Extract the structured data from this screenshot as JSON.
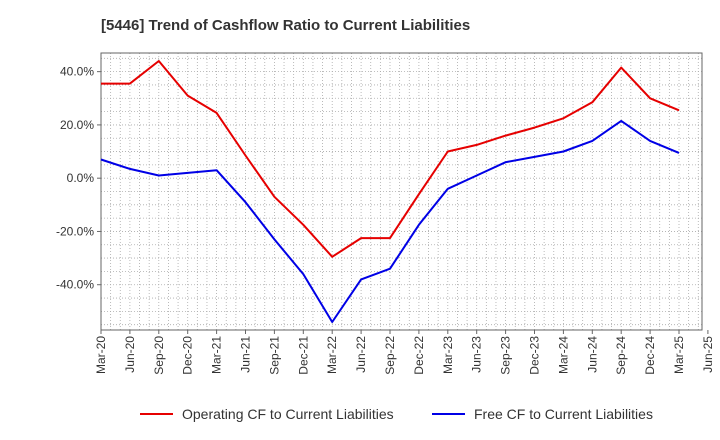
{
  "chart_data": {
    "type": "line",
    "title": "[5446]  Trend of Cashflow Ratio to Current Liabilities",
    "xlabel": "",
    "ylabel": "",
    "categories": [
      "Mar-20",
      "Jun-20",
      "Sep-20",
      "Dec-20",
      "Mar-21",
      "Jun-21",
      "Sep-21",
      "Dec-21",
      "Mar-22",
      "Jun-22",
      "Sep-22",
      "Dec-22",
      "Mar-23",
      "Jun-23",
      "Sep-23",
      "Dec-23",
      "Mar-24",
      "Jun-24",
      "Sep-24",
      "Dec-24",
      "Mar-25",
      "Jun-25"
    ],
    "y_ticks": [
      "40.0%",
      "20.0%",
      "0.0%",
      "-20.0%",
      "-40.0%"
    ],
    "y_tick_values": [
      40,
      20,
      0,
      -20,
      -40
    ],
    "ylim": [
      -57,
      47
    ],
    "grid": true,
    "legend_position": "bottom",
    "series": [
      {
        "name": "Operating CF to Current Liabilities",
        "color": "#e60000",
        "values": [
          35.5,
          35.5,
          44.0,
          31.0,
          24.5,
          8.5,
          -7.0,
          -17.5,
          -29.5,
          -22.5,
          -22.5,
          -6.0,
          10.0,
          12.5,
          16.0,
          19.0,
          22.5,
          28.5,
          41.5,
          30.0,
          25.5,
          null
        ]
      },
      {
        "name": "Free CF to Current Liabilities",
        "color": "#0000e6",
        "values": [
          7.0,
          3.5,
          1.0,
          2.0,
          3.0,
          -9.0,
          -23.0,
          -36.0,
          -54.0,
          -38.0,
          -34.0,
          -17.5,
          -4.0,
          1.0,
          6.0,
          8.0,
          10.0,
          14.0,
          21.5,
          14.0,
          9.5,
          null
        ]
      }
    ]
  }
}
